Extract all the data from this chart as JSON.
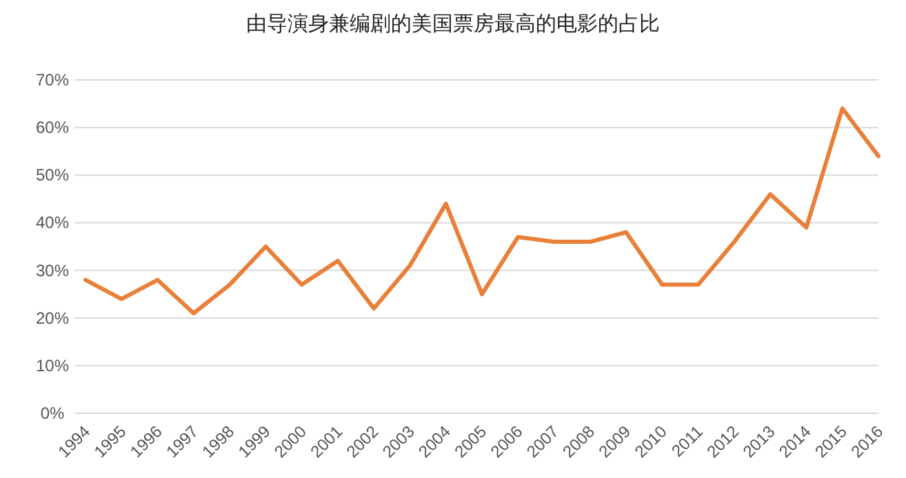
{
  "chart_data": {
    "type": "line",
    "title": "由导演身兼编剧的美国票房最高的电影的占比",
    "categories": [
      "1994",
      "1995",
      "1996",
      "1997",
      "1998",
      "1999",
      "2000",
      "2001",
      "2002",
      "2003",
      "2004",
      "2005",
      "2006",
      "2007",
      "2008",
      "2009",
      "2010",
      "2011",
      "2012",
      "2013",
      "2014",
      "2015",
      "2016"
    ],
    "series": [
      {
        "color": "#e8803a",
        "values": [
          28,
          24,
          28,
          21,
          27,
          35,
          27,
          32,
          22,
          31,
          44,
          25,
          37,
          36,
          36,
          38,
          27,
          27,
          36,
          46,
          39,
          64,
          54
        ]
      }
    ],
    "ylim": [
      0,
      70
    ],
    "yticks": [
      {
        "value": 0,
        "label": "0%"
      },
      {
        "value": 10,
        "label": "10%"
      },
      {
        "value": 20,
        "label": "20%"
      },
      {
        "value": 30,
        "label": "30%"
      },
      {
        "value": 40,
        "label": "40%"
      },
      {
        "value": 50,
        "label": "50%"
      },
      {
        "value": 60,
        "label": "60%"
      },
      {
        "value": 70,
        "label": "70%"
      }
    ],
    "grid": "y",
    "marker": "none",
    "line_style": "solid"
  }
}
